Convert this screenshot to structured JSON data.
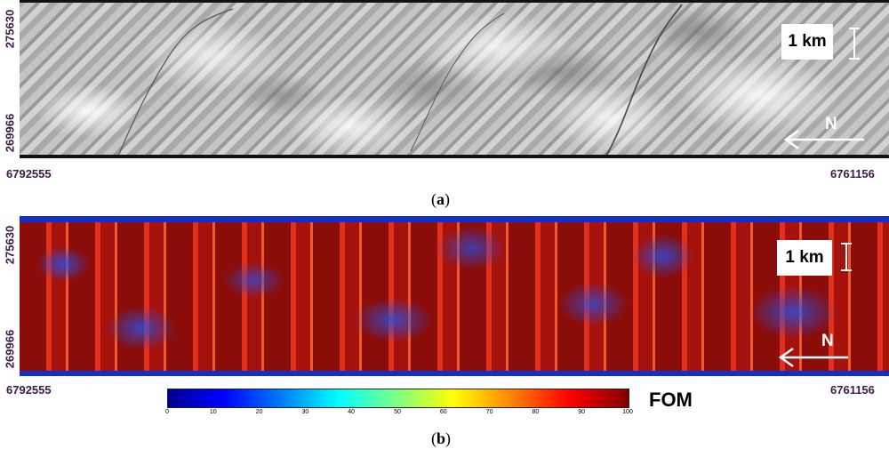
{
  "panel_a": {
    "y_top": "275630",
    "y_bottom": "269966",
    "x_left": "6792555",
    "x_right": "6761156",
    "scale_label": "1 km",
    "north_label": "N",
    "caption_open": "(",
    "caption_letter": "a",
    "caption_close": ")"
  },
  "panel_b": {
    "y_top": "275630",
    "y_bottom": "269966",
    "x_left": "6792555",
    "x_right": "6761156",
    "scale_label": "1 km",
    "north_label": "N",
    "caption_open": "(",
    "caption_letter": "b",
    "caption_close": ")"
  },
  "colorbar": {
    "label": "FOM",
    "ticks": [
      "0",
      "10",
      "20",
      "30",
      "40",
      "50",
      "60",
      "70",
      "80",
      "90",
      "100"
    ],
    "colors": [
      "#00008f",
      "#0000ff",
      "#0080ff",
      "#00ffff",
      "#80ff80",
      "#ffff00",
      "#ff8000",
      "#ff0000",
      "#800000"
    ]
  }
}
